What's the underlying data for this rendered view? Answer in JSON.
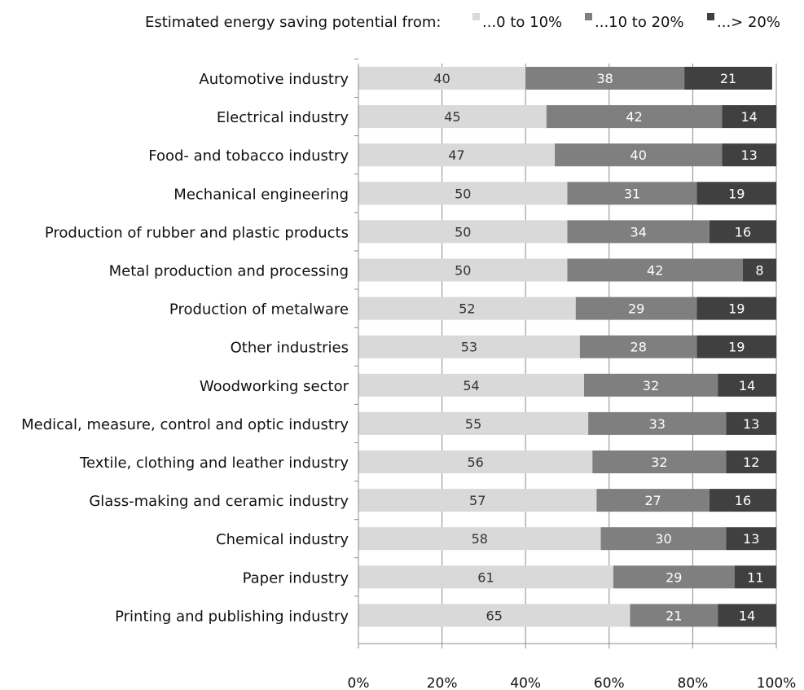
{
  "chart_data": {
    "type": "bar",
    "orientation": "horizontal",
    "stacked": true,
    "legend_title": "Estimated energy saving potential from:",
    "legend_position": "top",
    "categories": [
      "Automotive industry",
      "Electrical industry",
      "Food- and tobacco industry",
      "Mechanical engineering",
      "Production of rubber and plastic products",
      "Metal production and processing",
      "Production of metalware",
      "Other industries",
      "Woodworking sector",
      "Medical, measure, control and optic industry",
      "Textile, clothing and leather industry",
      "Glass-making and ceramic industry",
      "Chemical industry",
      "Paper industry",
      "Printing and publishing industry"
    ],
    "series": [
      {
        "name": "...0 to 10%",
        "color": "#d9d9d9",
        "label_color": "#333333",
        "values": [
          40,
          45,
          47,
          50,
          50,
          50,
          52,
          53,
          54,
          55,
          56,
          57,
          58,
          61,
          65
        ]
      },
      {
        "name": "...10 to 20%",
        "color": "#7f7f7f",
        "label_color": "#ffffff",
        "values": [
          38,
          42,
          40,
          31,
          34,
          42,
          29,
          28,
          32,
          33,
          32,
          27,
          30,
          29,
          21
        ]
      },
      {
        "name": "...> 20%",
        "color": "#404040",
        "label_color": "#ffffff",
        "values": [
          21,
          14,
          13,
          19,
          16,
          8,
          19,
          19,
          14,
          13,
          12,
          16,
          13,
          11,
          14
        ]
      }
    ],
    "x_ticks": [
      "0%",
      "20%",
      "40%",
      "60%",
      "80%",
      "100%"
    ],
    "xlim": [
      0,
      100
    ],
    "grid": "vertical"
  }
}
